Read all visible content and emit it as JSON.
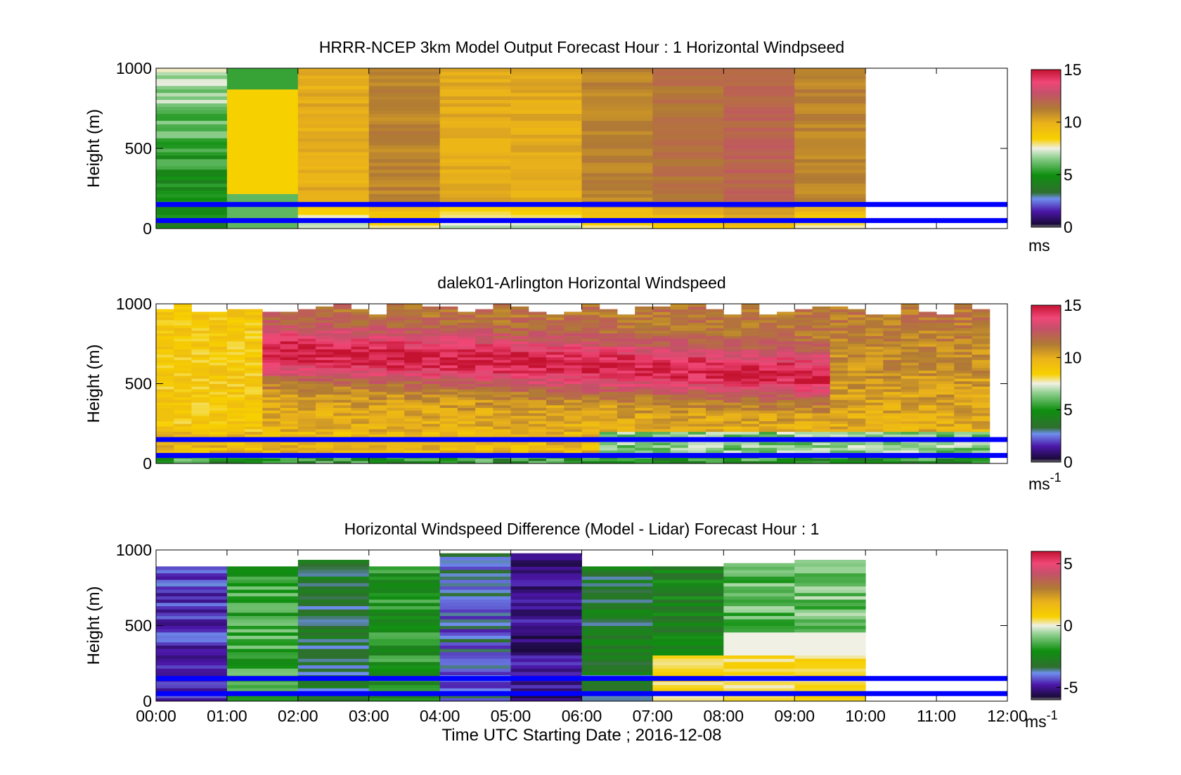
{
  "colors": {
    "overlay_lines": "#0000ff",
    "frame": "#000000"
  },
  "shared_x_axis": {
    "tick_labels": [
      "00:00",
      "01:00",
      "02:00",
      "03:00",
      "04:00",
      "05:00",
      "06:00",
      "07:00",
      "08:00",
      "09:00",
      "10:00",
      "11:00",
      "12:00"
    ],
    "xlabel": "Time UTC  Starting Date ; 2016-12-08"
  },
  "chart_data": [
    {
      "type": "heatmap",
      "title": "HRRR-NCEP 3km Model Output   Forecast Hour : 1 Horizontal Windpseed",
      "ylabel": "Height (m)",
      "ylim": [
        0,
        1000
      ],
      "y_tick_labels": [
        "1000",
        "500",
        "0"
      ],
      "xlim_hours": [
        0,
        12
      ],
      "data_hours": [
        0,
        10
      ],
      "overlay_heights_m": [
        150,
        50
      ],
      "colorbar": {
        "ticks": [
          "15",
          "10",
          "5",
          "0"
        ],
        "range": [
          0,
          15
        ],
        "unit": "ms"
      },
      "approx_speed_ms": [
        {
          "hour": "00:00",
          "value": 6
        },
        {
          "hour": "01:00",
          "value": 8
        },
        {
          "hour": "02:00",
          "value": 10
        },
        {
          "hour": "03:00",
          "value": 11
        },
        {
          "hour": "04:00",
          "value": 10
        },
        {
          "hour": "05:00",
          "value": 10
        },
        {
          "hour": "06:00",
          "value": 11
        },
        {
          "hour": "07:00",
          "value": 11.5
        },
        {
          "hour": "08:00",
          "value": 12
        },
        {
          "hour": "09:00",
          "value": 11
        }
      ]
    },
    {
      "type": "heatmap",
      "title": "dalek01-Arlington  Horizontal Windspeed",
      "ylabel": "Height (m)",
      "ylim": [
        0,
        1000
      ],
      "y_tick_labels": [
        "1000",
        "500",
        "0"
      ],
      "xlim_hours": [
        0,
        12
      ],
      "data_hours": [
        0,
        11.75
      ],
      "overlay_heights_m": [
        150,
        50
      ],
      "colorbar": {
        "ticks": [
          "15",
          "10",
          "5",
          "0"
        ],
        "range": [
          0,
          15
        ],
        "unit": "ms",
        "unit_sup": "-1"
      }
    },
    {
      "type": "heatmap",
      "title": "Horizontal Windspeed Difference (Model - Lidar) Forecast Hour : 1",
      "ylabel": "Height (m)",
      "ylim": [
        0,
        1000
      ],
      "y_tick_labels": [
        "1000",
        "500",
        "0"
      ],
      "xlim_hours": [
        0,
        12
      ],
      "data_hours": [
        0,
        10
      ],
      "overlay_heights_m": [
        150,
        50
      ],
      "colorbar": {
        "ticks": [
          "5",
          "0",
          "-5"
        ],
        "range": [
          -6,
          6
        ],
        "unit": "ms",
        "unit_sup": "-1"
      }
    }
  ]
}
